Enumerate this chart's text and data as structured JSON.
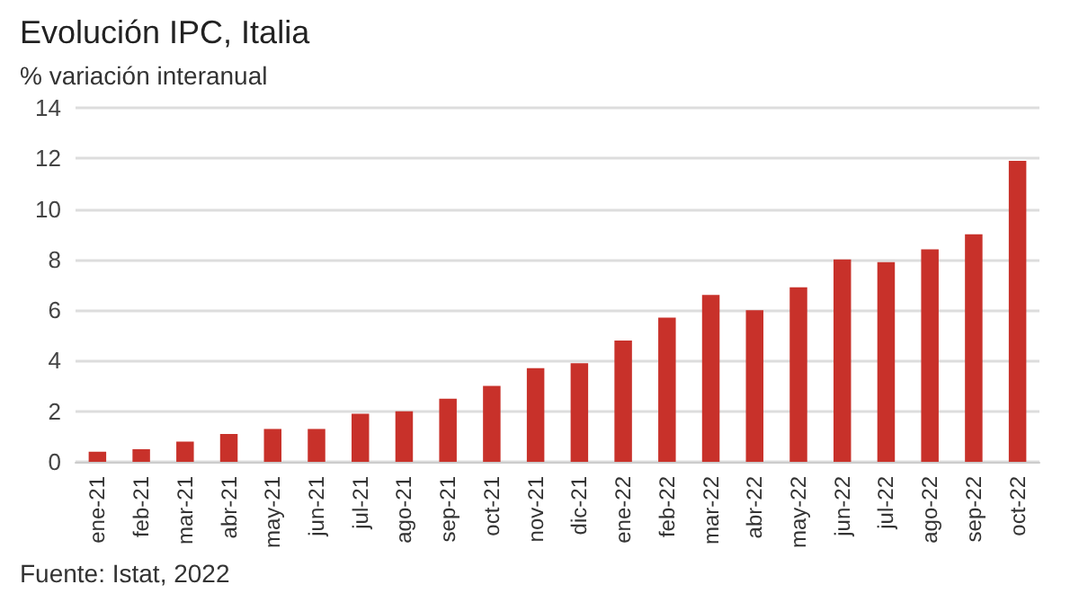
{
  "chart_data": {
    "type": "bar",
    "title": "Evolución IPC, Italia",
    "subtitle": "% variación interanual",
    "categories": [
      "ene-21",
      "feb-21",
      "mar-21",
      "abr-21",
      "may-21",
      "jun-21",
      "jul-21",
      "ago-21",
      "sep-21",
      "oct-21",
      "nov-21",
      "dic-21",
      "ene-22",
      "feb-22",
      "mar-22",
      "abr-22",
      "may-22",
      "jun-22",
      "jul-22",
      "ago-22",
      "sep-22",
      "oct-22"
    ],
    "values": [
      0.4,
      0.5,
      0.8,
      1.1,
      1.3,
      1.3,
      1.9,
      2.0,
      2.5,
      3.0,
      3.7,
      3.9,
      4.8,
      5.7,
      6.6,
      6.0,
      6.9,
      8.0,
      7.9,
      8.4,
      9.0,
      11.9
    ],
    "color": "#c8312a",
    "ylim": [
      0,
      14
    ],
    "yticks": [
      0,
      2,
      4,
      6,
      8,
      10,
      12,
      14
    ],
    "grid": "y",
    "annotations": [
      "Fuente: Istat, 2022"
    ]
  }
}
